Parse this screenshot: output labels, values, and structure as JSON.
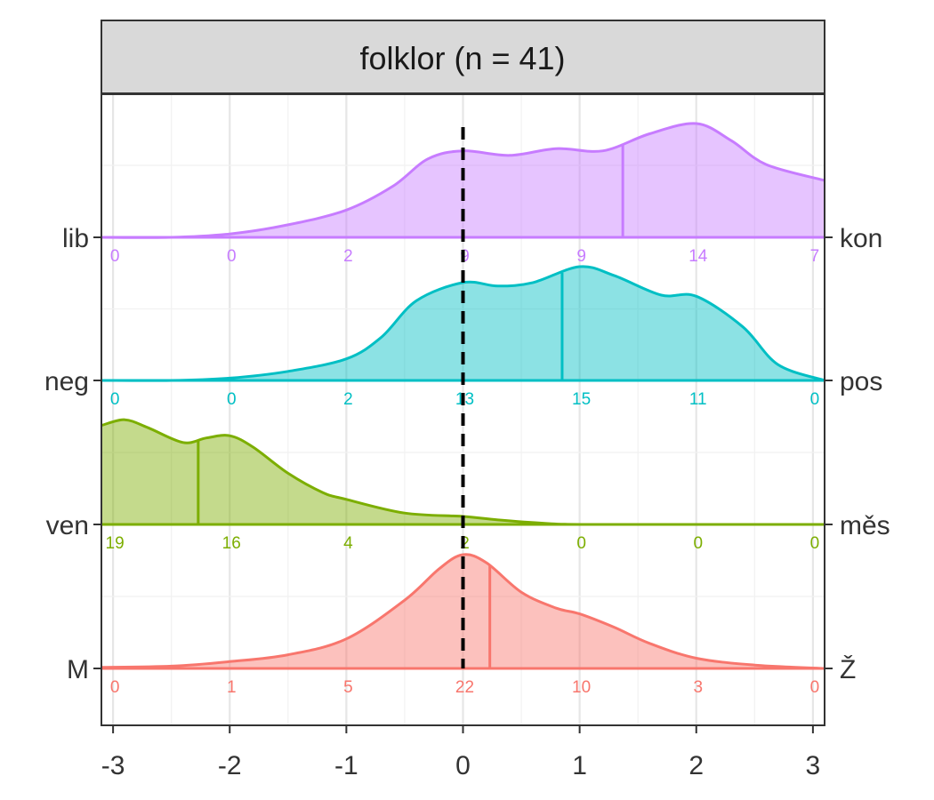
{
  "chart_data": {
    "type": "ridgeline-density",
    "title": "folklor (n = 41)",
    "xlabel": "",
    "ylabel": "",
    "xlim": [
      -3.1,
      3.1
    ],
    "x_ticks": [
      -3,
      -2,
      -1,
      0,
      1,
      2,
      3
    ],
    "x_tick_labels": [
      "-3",
      "-2",
      "-1",
      "0",
      "1",
      "2",
      "3"
    ],
    "reference_line_x": 0,
    "count_positions": [
      -3,
      -2,
      -1,
      0,
      1,
      2,
      3
    ],
    "grid": true,
    "series": [
      {
        "left_label": "M",
        "right_label": "Ž",
        "color": "#F8766D",
        "mean": 0.23,
        "counts": [
          0,
          1,
          5,
          22,
          10,
          3,
          0
        ],
        "density": {
          "x": [
            -3.1,
            -2.5,
            -2.0,
            -1.5,
            -1.0,
            -0.5,
            -0.2,
            0.0,
            0.2,
            0.5,
            0.8,
            1.0,
            1.3,
            1.6,
            2.0,
            2.5,
            3.1
          ],
          "y": [
            0.01,
            0.02,
            0.06,
            0.12,
            0.26,
            0.6,
            0.88,
            1.0,
            0.93,
            0.67,
            0.53,
            0.48,
            0.36,
            0.22,
            0.09,
            0.03,
            0.0
          ]
        }
      },
      {
        "left_label": "ven",
        "right_label": "měs",
        "color": "#7CAE00",
        "mean": -2.27,
        "counts": [
          19,
          16,
          4,
          2,
          0,
          0,
          0
        ],
        "density": {
          "x": [
            -3.1,
            -2.9,
            -2.7,
            -2.4,
            -2.2,
            -2.0,
            -1.8,
            -1.5,
            -1.2,
            -1.0,
            -0.5,
            0.0,
            0.3,
            0.7,
            1.0,
            2.0,
            3.1
          ],
          "y": [
            0.87,
            0.92,
            0.85,
            0.72,
            0.76,
            0.78,
            0.68,
            0.45,
            0.28,
            0.22,
            0.1,
            0.07,
            0.04,
            0.01,
            0.0,
            0.0,
            0.0
          ]
        }
      },
      {
        "left_label": "neg",
        "right_label": "pos",
        "color": "#00BFC4",
        "mean": 0.85,
        "counts": [
          0,
          0,
          2,
          13,
          15,
          11,
          0
        ],
        "density": {
          "x": [
            -3.1,
            -2.5,
            -2.0,
            -1.5,
            -1.0,
            -0.7,
            -0.4,
            0.0,
            0.3,
            0.6,
            1.0,
            1.3,
            1.7,
            2.0,
            2.4,
            2.7,
            3.1
          ],
          "y": [
            0.0,
            0.0,
            0.02,
            0.08,
            0.19,
            0.38,
            0.7,
            0.86,
            0.83,
            0.86,
            1.0,
            0.92,
            0.75,
            0.74,
            0.47,
            0.14,
            0.0
          ]
        }
      },
      {
        "left_label": "lib",
        "right_label": "kon",
        "color": "#C77CFF",
        "mean": 1.37,
        "counts": [
          0,
          0,
          2,
          9,
          9,
          14,
          7
        ],
        "density": {
          "x": [
            -3.1,
            -2.5,
            -2.0,
            -1.5,
            -1.0,
            -0.6,
            -0.3,
            0.0,
            0.4,
            0.8,
            1.2,
            1.6,
            2.0,
            2.3,
            2.6,
            3.1
          ],
          "y": [
            0.0,
            0.0,
            0.03,
            0.11,
            0.24,
            0.45,
            0.69,
            0.76,
            0.72,
            0.78,
            0.76,
            0.91,
            1.0,
            0.85,
            0.64,
            0.5
          ]
        }
      }
    ]
  }
}
